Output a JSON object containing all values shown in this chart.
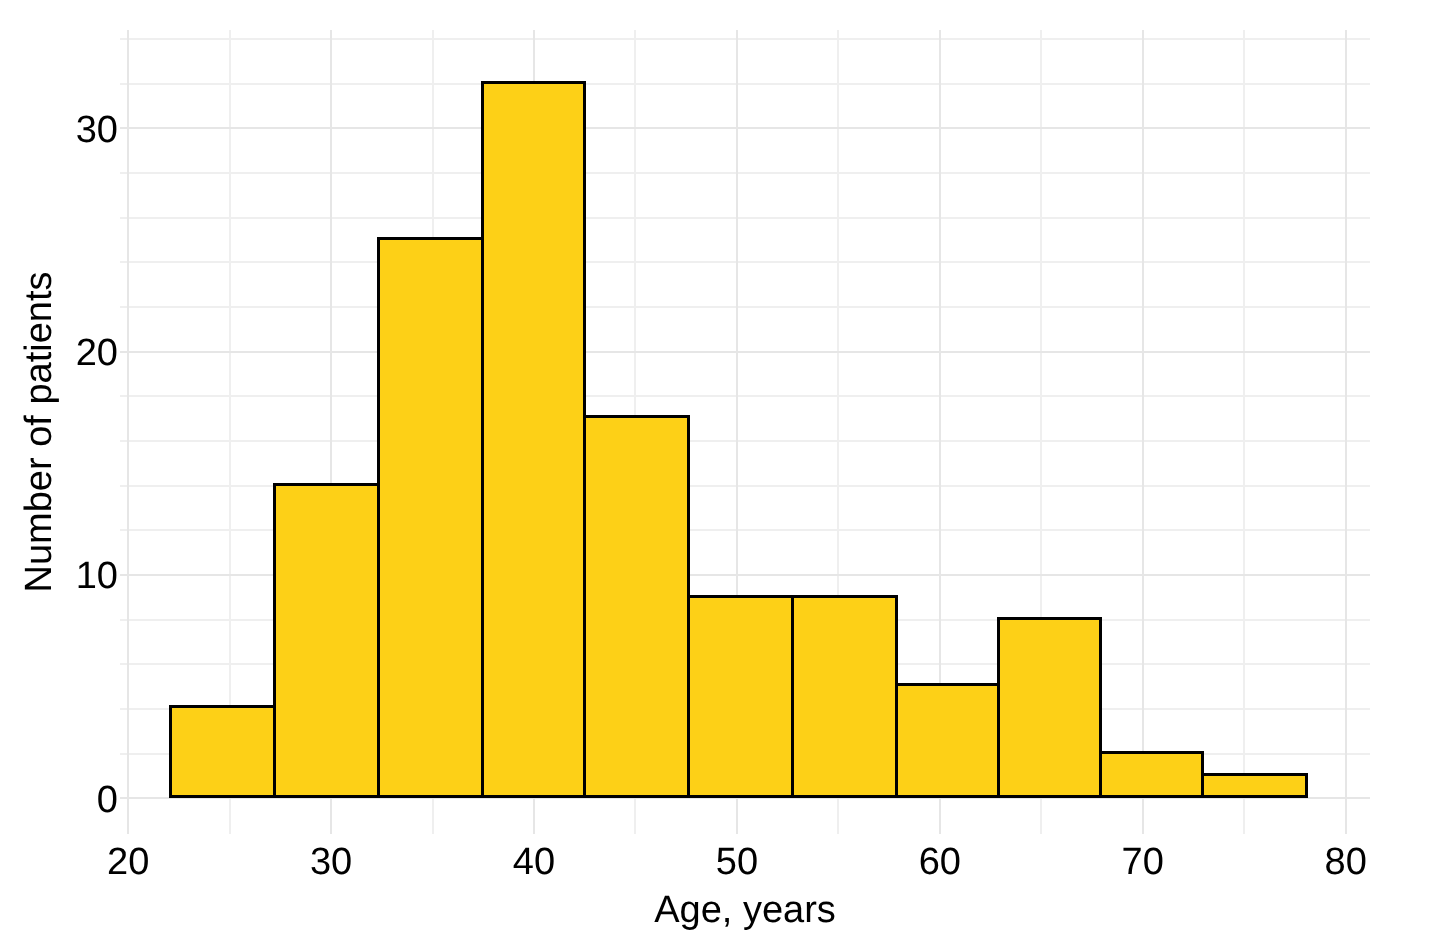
{
  "chart_data": {
    "type": "histogram",
    "xlabel": "Age, years",
    "ylabel": "Number of patients",
    "bins": [
      22.2,
      27.3,
      32.4,
      37.5,
      42.6,
      47.7,
      52.8,
      57.9,
      63.0,
      68.0,
      73.0,
      78.1
    ],
    "values": [
      4,
      14,
      25,
      32,
      17,
      9,
      9,
      5,
      8,
      2,
      1
    ],
    "color": "#fdd017",
    "xlim": [
      19.6,
      81.2
    ],
    "ylim": [
      -1.6,
      34.4
    ],
    "xticks": [
      20,
      30,
      40,
      50,
      60,
      70,
      80
    ],
    "yticks": [
      0,
      10,
      20,
      30
    ],
    "grid": true
  }
}
